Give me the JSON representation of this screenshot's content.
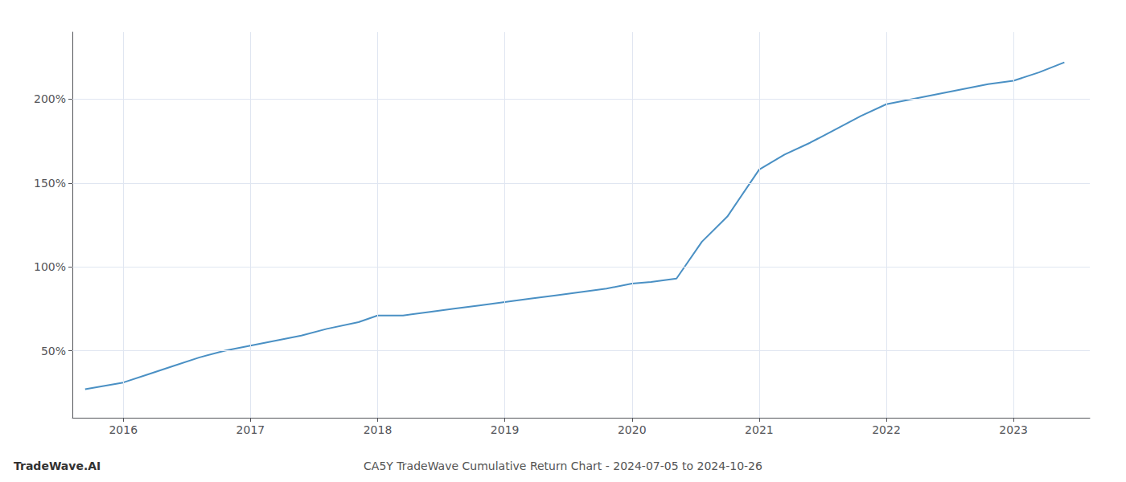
{
  "chart_data": {
    "type": "line",
    "title": "CA5Y TradeWave Cumulative Return Chart - 2024-07-05 to 2024-10-26",
    "annotations": [
      "TradeWave.AI"
    ],
    "x": [
      2015.7,
      2016.0,
      2016.2,
      2016.4,
      2016.6,
      2016.8,
      2017.0,
      2017.2,
      2017.4,
      2017.6,
      2017.85,
      2018.0,
      2018.2,
      2018.4,
      2018.6,
      2018.8,
      2019.0,
      2019.2,
      2019.4,
      2019.6,
      2019.8,
      2020.0,
      2020.15,
      2020.35,
      2020.55,
      2020.75,
      2021.0,
      2021.2,
      2021.4,
      2021.6,
      2021.8,
      2022.0,
      2022.2,
      2022.4,
      2022.6,
      2022.8,
      2023.0,
      2023.2,
      2023.4
    ],
    "values": [
      27,
      31,
      36,
      41,
      46,
      50,
      53,
      56,
      59,
      63,
      67,
      71,
      71,
      73,
      75,
      77,
      79,
      81,
      83,
      85,
      87,
      90,
      91,
      93,
      115,
      130,
      158,
      167,
      174,
      182,
      190,
      197,
      200,
      203,
      206,
      209,
      211,
      216,
      222
    ],
    "color": "#4a90c4",
    "xlim": [
      2015.6,
      2023.6
    ],
    "xticks": [
      2016,
      2017,
      2018,
      2019,
      2020,
      2021,
      2022,
      2023
    ],
    "ylim": [
      10,
      240
    ],
    "yticks": [
      {
        "value": 50,
        "label": "50%"
      },
      {
        "value": 100,
        "label": "100%"
      },
      {
        "value": 150,
        "label": "150%"
      },
      {
        "value": 200,
        "label": "200%"
      }
    ],
    "grid": true
  }
}
